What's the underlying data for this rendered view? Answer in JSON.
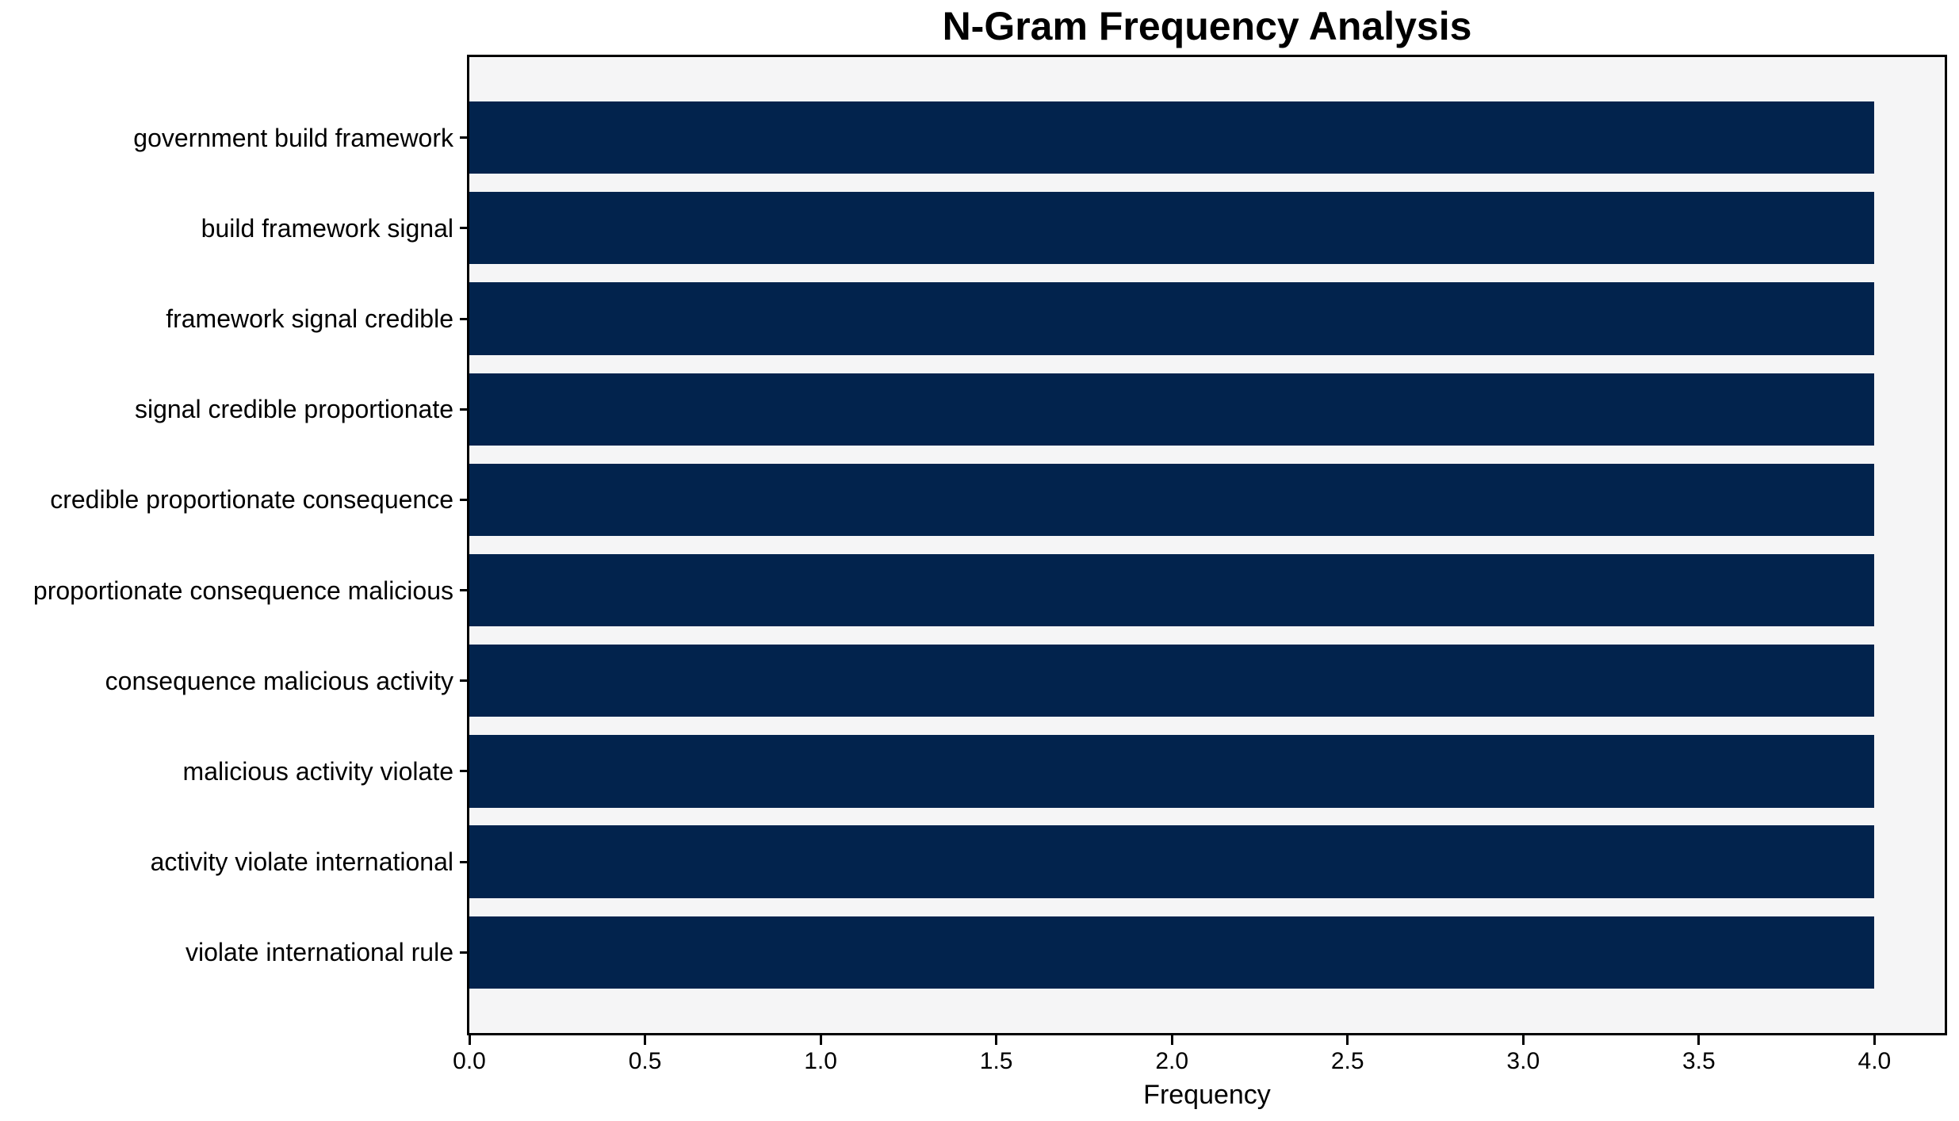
{
  "chart_data": {
    "type": "bar",
    "orientation": "horizontal",
    "title": "N-Gram Frequency Analysis",
    "xlabel": "Frequency",
    "ylabel": "",
    "categories": [
      "government build framework",
      "build framework signal",
      "framework signal credible",
      "signal credible proportionate",
      "credible proportionate consequence",
      "proportionate consequence malicious",
      "consequence malicious activity",
      "malicious activity violate",
      "activity violate international",
      "violate international rule"
    ],
    "values": [
      4,
      4,
      4,
      4,
      4,
      4,
      4,
      4,
      4,
      4
    ],
    "xlim": [
      0,
      4.2
    ],
    "xtick_values": [
      0.0,
      0.5,
      1.0,
      1.5,
      2.0,
      2.5,
      3.0,
      3.5,
      4.0
    ],
    "xtick_labels": [
      "0.0",
      "0.5",
      "1.0",
      "1.5",
      "2.0",
      "2.5",
      "3.0",
      "3.5",
      "4.0"
    ],
    "grid": false,
    "legend": null,
    "colors": {
      "bar": "#02234d",
      "plot_background": "#f5f5f6",
      "figure_background": "#ffffff",
      "axis": "#000000",
      "text": "#000000"
    }
  }
}
